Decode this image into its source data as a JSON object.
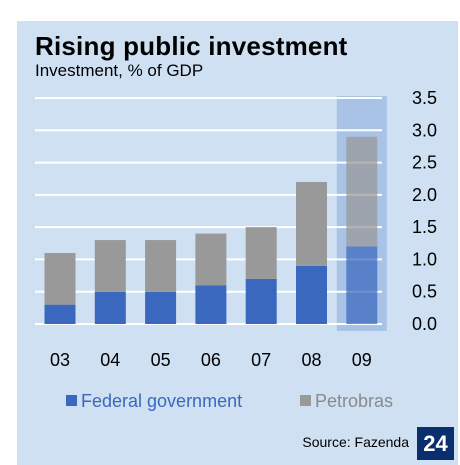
{
  "title": "Rising public investment",
  "subtitle": "Investment, % of GDP",
  "source": "Source: Fazenda",
  "page_number": "24",
  "colors": {
    "background": "#cfe0f2",
    "federal": "#3a68bf",
    "petrobras": "#999999",
    "highlight_band": "#a9c3e6",
    "badge": "#0a2f6e"
  },
  "chart_data": {
    "type": "bar",
    "stacked": true,
    "categories": [
      "03",
      "04",
      "05",
      "06",
      "07",
      "08",
      "09"
    ],
    "series": [
      {
        "name": "Federal government",
        "values": [
          0.3,
          0.5,
          0.5,
          0.6,
          0.7,
          0.9,
          1.2
        ]
      },
      {
        "name": "Petrobras",
        "values": [
          0.8,
          0.8,
          0.8,
          0.8,
          0.8,
          1.3,
          1.7
        ]
      }
    ],
    "ylim": [
      0,
      3.5
    ],
    "yticks": [
      "0.0",
      "0.5",
      "1.0",
      "1.5",
      "2.0",
      "2.5",
      "3.0",
      "3.5"
    ],
    "y_axis_side": "right",
    "grid": true,
    "highlighted_category": "09",
    "legend_position": "bottom"
  }
}
